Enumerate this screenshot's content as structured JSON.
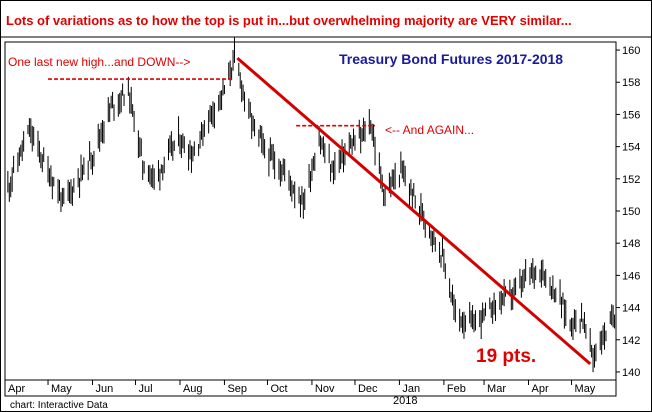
{
  "banner": "Lots of variations as to how the top is put in...but overwhelming majority are VERY similar...",
  "credit": "chart: Interactive Data",
  "annotations": {
    "first_top": "One last new high...and DOWN-->",
    "second_top": "<-- And AGAIN...",
    "decline": "19 pts."
  },
  "colors": {
    "annotation": "#e00000",
    "title": "#1a1a9c",
    "price": "#000000",
    "background": "#ffffff"
  },
  "chart_data": {
    "type": "ohlc",
    "title": "Treasury Bond Futures 2017-2018",
    "xlabel": "",
    "ylabel": "",
    "ylim": [
      139.5,
      160.5
    ],
    "y_ticks": [
      140,
      142,
      144,
      146,
      148,
      150,
      152,
      154,
      156,
      158,
      160
    ],
    "y_axis_side": "right",
    "grid": false,
    "x_tick_labels": [
      "Apr",
      "May",
      "Jun",
      "Jul",
      "Aug",
      "Sep",
      "Oct",
      "Nov",
      "Dec",
      "Jan",
      "Feb",
      "Mar",
      "Apr",
      "May"
    ],
    "x_year_label": "2018",
    "date_range": [
      "2017-04",
      "2018-05"
    ],
    "price_path": [
      [
        "2017-04-01",
        151.0
      ],
      [
        "2017-04-18",
        155.0
      ],
      [
        "2017-05-01",
        152.5
      ],
      [
        "2017-05-12",
        150.5
      ],
      [
        "2017-06-01",
        153.5
      ],
      [
        "2017-06-14",
        156.5
      ],
      [
        "2017-06-26",
        157.5
      ],
      [
        "2017-07-06",
        153.0
      ],
      [
        "2017-07-14",
        152.0
      ],
      [
        "2017-07-31",
        154.5
      ],
      [
        "2017-08-10",
        153.5
      ],
      [
        "2017-08-22",
        156.0
      ],
      [
        "2017-09-01",
        157.5
      ],
      [
        "2017-09-08",
        159.5
      ],
      [
        "2017-09-20",
        155.5
      ],
      [
        "2017-10-01",
        153.5
      ],
      [
        "2017-10-12",
        152.5
      ],
      [
        "2017-10-26",
        150.5
      ],
      [
        "2017-11-06",
        154.5
      ],
      [
        "2017-11-15",
        152.5
      ],
      [
        "2017-11-27",
        154.0
      ],
      [
        "2017-12-05",
        154.5
      ],
      [
        "2017-12-12",
        155.5
      ],
      [
        "2017-12-18",
        152.5
      ],
      [
        "2017-12-22",
        151.0
      ],
      [
        "2018-01-02",
        152.5
      ],
      [
        "2018-01-10",
        151.0
      ],
      [
        "2018-01-22",
        149.0
      ],
      [
        "2018-02-01",
        147.0
      ],
      [
        "2018-02-09",
        143.5
      ],
      [
        "2018-02-21",
        143.0
      ],
      [
        "2018-03-01",
        143.5
      ],
      [
        "2018-03-13",
        144.5
      ],
      [
        "2018-03-23",
        145.0
      ],
      [
        "2018-04-01",
        146.0
      ],
      [
        "2018-04-09",
        146.5
      ],
      [
        "2018-04-23",
        144.5
      ],
      [
        "2018-04-30",
        143.0
      ],
      [
        "2018-05-08",
        143.5
      ],
      [
        "2018-05-16",
        141.0
      ],
      [
        "2018-05-22",
        142.0
      ],
      [
        "2018-05-31",
        143.5
      ]
    ],
    "trendline": {
      "from": [
        "2017-09-10",
        159.5
      ],
      "to": [
        "2018-05-14",
        140.5
      ]
    },
    "resistance_lines": [
      {
        "from": "2017-05-01",
        "to": "2017-09-07",
        "price": 158.2
      },
      {
        "from": "2017-10-21",
        "to": "2017-12-15",
        "price": 155.3
      }
    ]
  }
}
